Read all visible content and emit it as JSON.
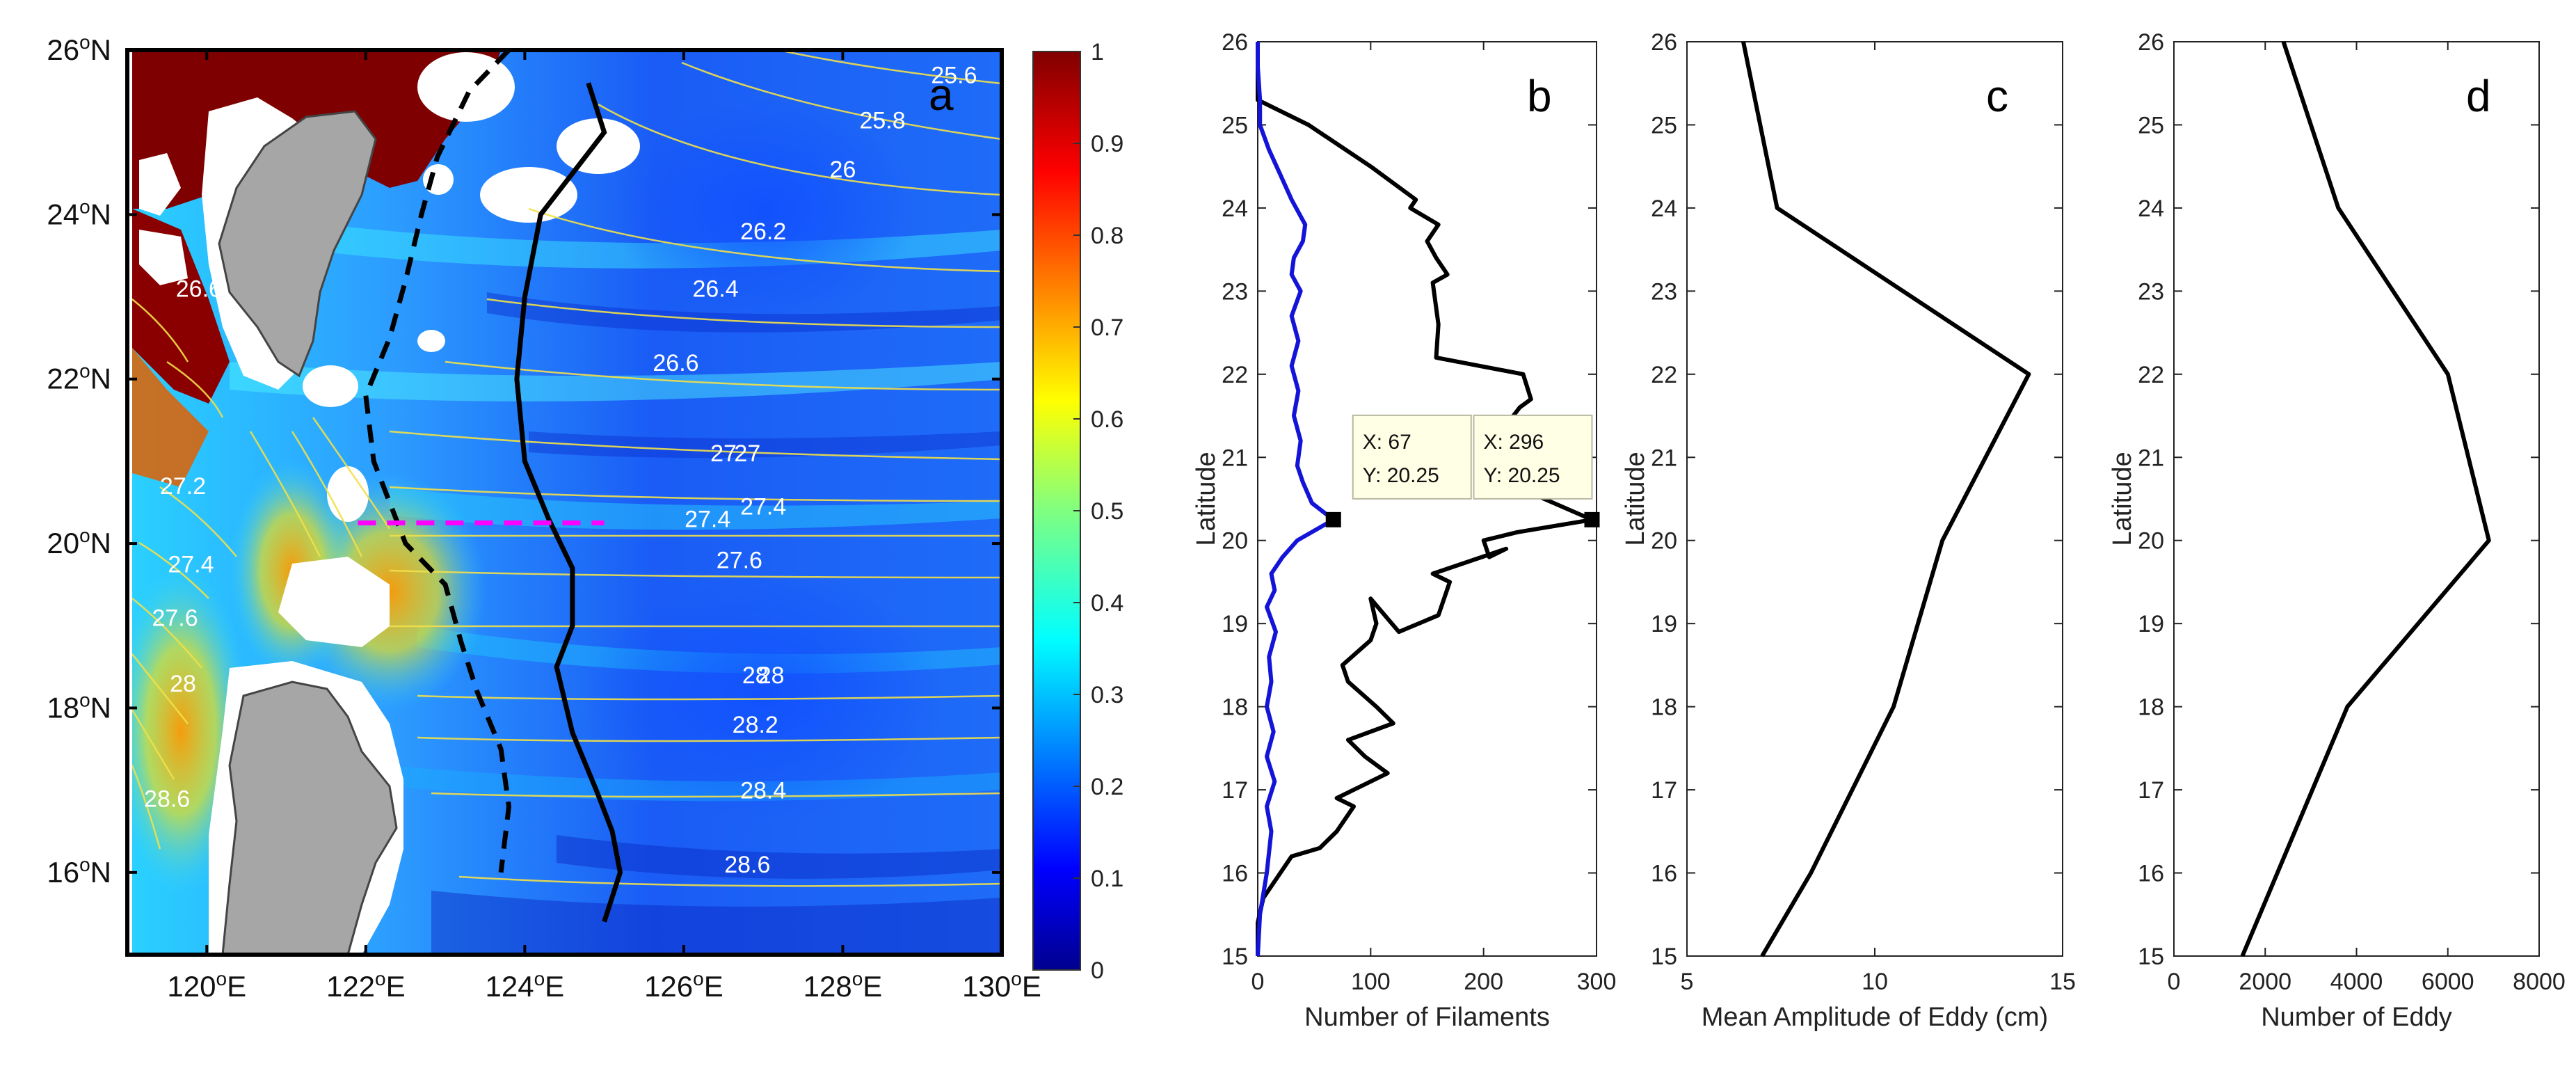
{
  "chart_data": [
    {
      "panel": "a",
      "type": "heatmap",
      "xlim": [
        119,
        130
      ],
      "ylim": [
        15,
        26
      ],
      "x_ticks": [
        "120°E",
        "122°E",
        "124°E",
        "126°E",
        "128°E",
        "130°E"
      ],
      "x_tick_values": [
        120,
        122,
        124,
        126,
        128,
        130
      ],
      "y_ticks": [
        "16°N",
        "18°N",
        "20°N",
        "22°N",
        "24°N",
        "26°N"
      ],
      "y_tick_values": [
        16,
        18,
        20,
        22,
        24,
        26
      ],
      "colorbar": {
        "min": 0,
        "max": 1,
        "ticks": [
          "0",
          "0.1",
          "0.2",
          "0.3",
          "0.4",
          "0.5",
          "0.6",
          "0.7",
          "0.8",
          "0.9",
          "1"
        ]
      },
      "contour_labels": [
        {
          "text": "25.6",
          "lon": 129.4,
          "lat": 25.6
        },
        {
          "text": "25.8",
          "lon": 128.5,
          "lat": 25.05
        },
        {
          "text": "26",
          "lon": 128.0,
          "lat": 24.45
        },
        {
          "text": "26.2",
          "lon": 127.0,
          "lat": 23.7
        },
        {
          "text": "26.4",
          "lon": 126.4,
          "lat": 23.0
        },
        {
          "text": "26.6",
          "lon": 125.9,
          "lat": 22.1
        },
        {
          "text": "26.6",
          "lon": 119.9,
          "lat": 23.0
        },
        {
          "text": "27",
          "lon": 126.5,
          "lat": 21.0
        },
        {
          "text": "27",
          "lon": 126.8,
          "lat": 21.0
        },
        {
          "text": "27.2",
          "lon": 119.7,
          "lat": 20.6
        },
        {
          "text": "27.4",
          "lon": 126.3,
          "lat": 20.2
        },
        {
          "text": "27.4",
          "lon": 127.0,
          "lat": 20.35
        },
        {
          "text": "27.4",
          "lon": 119.8,
          "lat": 19.65
        },
        {
          "text": "27.6",
          "lon": 126.7,
          "lat": 19.7
        },
        {
          "text": "27.6",
          "lon": 119.6,
          "lat": 19.0
        },
        {
          "text": "28",
          "lon": 119.7,
          "lat": 18.2
        },
        {
          "text": "28",
          "lon": 126.9,
          "lat": 18.3
        },
        {
          "text": "28",
          "lon": 127.1,
          "lat": 18.3
        },
        {
          "text": "28.2",
          "lon": 126.9,
          "lat": 17.7
        },
        {
          "text": "28.4",
          "lon": 127.0,
          "lat": 16.9
        },
        {
          "text": "28.6",
          "lon": 119.5,
          "lat": 16.8
        },
        {
          "text": "28.6",
          "lon": 126.8,
          "lat": 16.0
        }
      ],
      "dashed_black_line": {
        "lon": [
          123.8,
          123.3,
          122.9,
          122.7,
          122.5,
          122.3,
          122.0,
          122.1,
          122.5,
          123.0,
          123.2,
          123.4,
          123.7,
          123.8,
          123.7
        ],
        "lat": [
          26.0,
          25.5,
          24.7,
          24.0,
          23.2,
          22.5,
          21.8,
          21.0,
          20.0,
          19.5,
          18.8,
          18.2,
          17.5,
          16.8,
          16.0
        ]
      },
      "solid_black_line": {
        "lon": [
          124.8,
          125.0,
          124.6,
          124.2,
          124.0,
          123.9,
          124.0,
          124.3,
          124.6,
          124.6,
          124.4,
          124.6,
          124.9,
          125.1,
          125.2,
          125.0
        ],
        "lat": [
          25.6,
          25.0,
          24.5,
          24.0,
          23.0,
          22.0,
          21.0,
          20.3,
          19.7,
          19.0,
          18.5,
          17.7,
          17.0,
          16.5,
          16.0,
          15.4
        ]
      },
      "magenta_dashed_line": {
        "lon": [
          121.9,
          125.0
        ],
        "lat": [
          20.25,
          20.25
        ]
      }
    },
    {
      "panel": "b",
      "type": "line",
      "xlabel": "Number of Filaments",
      "ylabel": "Latitude",
      "xlim": [
        0,
        300
      ],
      "ylim": [
        15,
        26
      ],
      "x_ticks": [
        "0",
        "100",
        "200",
        "300"
      ],
      "y_ticks": [
        "15",
        "16",
        "17",
        "18",
        "19",
        "20",
        "21",
        "22",
        "23",
        "24",
        "25",
        "26"
      ],
      "series": [
        {
          "name": "black",
          "color": "#000000",
          "x": [
            0,
            0,
            5,
            30,
            55,
            70,
            85,
            70,
            115,
            95,
            80,
            120,
            105,
            80,
            75,
            100,
            105,
            100,
            125,
            160,
            170,
            155,
            220,
            205,
            200,
            230,
            296,
            220,
            228,
            232,
            215,
            232,
            242,
            235,
            158,
            160,
            155,
            168,
            158,
            150,
            160,
            135,
            140,
            100,
            45,
            0,
            0
          ],
          "y": [
            15,
            15.4,
            15.7,
            16.2,
            16.3,
            16.5,
            16.8,
            16.9,
            17.2,
            17.4,
            17.6,
            17.8,
            18.0,
            18.3,
            18.5,
            18.8,
            19.0,
            19.3,
            18.9,
            19.1,
            19.5,
            19.6,
            19.9,
            19.8,
            20.0,
            20.1,
            20.25,
            20.7,
            21.0,
            21.2,
            21.3,
            21.6,
            21.7,
            22.0,
            22.2,
            22.6,
            23.1,
            23.2,
            23.4,
            23.6,
            23.8,
            24.0,
            24.1,
            24.5,
            25.0,
            25.3,
            26.0
          ]
        },
        {
          "name": "blue",
          "color": "#1414d8",
          "x": [
            0,
            2,
            8,
            12,
            8,
            15,
            8,
            14,
            8,
            12,
            10,
            16,
            8,
            15,
            12,
            22,
            35,
            67,
            48,
            40,
            35,
            38,
            32,
            36,
            30,
            36,
            30,
            38,
            30,
            32,
            40,
            42,
            30,
            20,
            10,
            2,
            2,
            0,
            0
          ],
          "y": [
            15,
            15.5,
            16.0,
            16.5,
            16.8,
            17.1,
            17.4,
            17.7,
            18.0,
            18.3,
            18.6,
            18.9,
            19.2,
            19.4,
            19.6,
            19.8,
            20.0,
            20.25,
            20.45,
            20.7,
            20.9,
            21.2,
            21.5,
            21.8,
            22.1,
            22.4,
            22.7,
            23.0,
            23.2,
            23.4,
            23.6,
            23.8,
            24.1,
            24.4,
            24.7,
            25.0,
            25.3,
            25.7,
            26.0
          ]
        }
      ],
      "datatips": [
        {
          "x": 67,
          "y": 20.25,
          "label_x": "X: 67",
          "label_y": "Y: 20.25"
        },
        {
          "x": 296,
          "y": 20.25,
          "label_x": "X: 296",
          "label_y": "Y: 20.25"
        }
      ]
    },
    {
      "panel": "c",
      "type": "line",
      "xlabel": "Mean Amplitude of Eddy (cm)",
      "ylabel": "Latitude",
      "xlim": [
        5,
        15
      ],
      "ylim": [
        15,
        26
      ],
      "x_ticks": [
        "5",
        "10",
        "15"
      ],
      "y_ticks": [
        "15",
        "16",
        "17",
        "18",
        "19",
        "20",
        "21",
        "22",
        "23",
        "24",
        "25",
        "26"
      ],
      "series": [
        {
          "name": "amplitude",
          "color": "#000000",
          "x": [
            7.0,
            8.3,
            10.5,
            11.8,
            14.1,
            7.4,
            6.5
          ],
          "y": [
            15,
            16,
            18,
            20,
            22,
            24,
            26
          ]
        }
      ]
    },
    {
      "panel": "d",
      "type": "line",
      "xlabel": "Number of Eddy",
      "ylabel": "Latitude",
      "xlim": [
        0,
        8000
      ],
      "ylim": [
        15,
        26
      ],
      "x_ticks": [
        "0",
        "2000",
        "4000",
        "6000",
        "8000"
      ],
      "y_ticks": [
        "15",
        "16",
        "17",
        "18",
        "19",
        "20",
        "21",
        "22",
        "23",
        "24",
        "25",
        "26"
      ],
      "series": [
        {
          "name": "eddy count",
          "color": "#000000",
          "x": [
            1500,
            3800,
            6900,
            6000,
            3600,
            2400
          ],
          "y": [
            15,
            18,
            20,
            22,
            24,
            26
          ]
        }
      ]
    }
  ]
}
